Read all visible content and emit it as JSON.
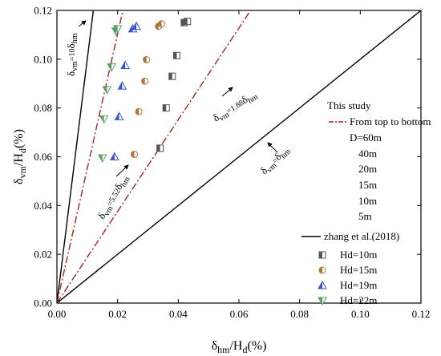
{
  "chart_data": {
    "type": "scatter",
    "xlabel": "δhm/Hd(%)",
    "ylabel": "δvm/Hd(%)",
    "xlim": [
      0,
      0.12
    ],
    "ylim": [
      0,
      0.12
    ],
    "xticks": [
      "0.00",
      "0.02",
      "0.04",
      "0.06",
      "0.08",
      "0.10",
      "0.12"
    ],
    "yticks": [
      "0.00",
      "0.02",
      "0.04",
      "0.06",
      "0.08",
      "0.10",
      "0.12"
    ],
    "grid": false,
    "lines": [
      {
        "label": "δvm=10δhm",
        "slope": 10,
        "style": "solid",
        "color": "#000000"
      },
      {
        "label": "δvm=5.52δhm",
        "slope": 5.52,
        "style": "dashdot",
        "color": "#a0281e"
      },
      {
        "label": "δvm=1.88δhm",
        "slope": 1.88,
        "style": "dashdot",
        "color": "#a0281e"
      },
      {
        "label": "δvm=δhm",
        "slope": 1,
        "style": "solid",
        "color": "#000000"
      }
    ],
    "series": [
      {
        "name": "Hd=10m",
        "marker": "half-square",
        "color": "#555555",
        "x": [
          0.034,
          0.036,
          0.038,
          0.0395,
          0.042,
          0.043
        ],
        "y": [
          0.0635,
          0.08,
          0.093,
          0.1015,
          0.115,
          0.1155
        ]
      },
      {
        "name": "Hd=15m",
        "marker": "half-circle",
        "color": "#b0753a",
        "x": [
          0.0255,
          0.027,
          0.029,
          0.0295,
          0.0335,
          0.0345
        ],
        "y": [
          0.061,
          0.0785,
          0.091,
          0.0998,
          0.1135,
          0.1145
        ]
      },
      {
        "name": "Hd=19m",
        "marker": "half-triangle-up",
        "color": "#3a55c8",
        "x": [
          0.019,
          0.0205,
          0.0215,
          0.0225,
          0.025,
          0.0262
        ],
        "y": [
          0.06,
          0.0765,
          0.089,
          0.0975,
          0.1125,
          0.1135
        ]
      },
      {
        "name": "Hd=22m",
        "marker": "half-triangle-down",
        "color": "#5aa068",
        "x": [
          0.015,
          0.0155,
          0.0165,
          0.018,
          0.0195,
          0.02
        ],
        "y": [
          0.0595,
          0.0755,
          0.0875,
          0.0968,
          0.1115,
          0.1125
        ]
      }
    ],
    "legend": {
      "placement": "right",
      "entries": [
        "This study",
        "From top to bottom",
        "D=60m",
        "40m",
        "20m",
        "15m",
        "10m",
        "5m",
        "zhang et al.(2018)",
        "Hd=10m",
        "Hd=15m",
        "Hd=19m",
        "Hd=22m"
      ]
    }
  }
}
